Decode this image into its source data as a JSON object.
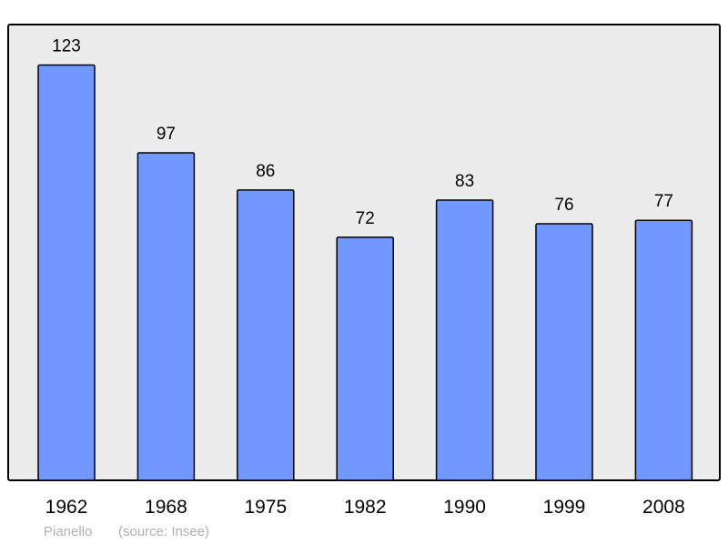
{
  "chart_data": {
    "type": "bar",
    "categories": [
      "1962",
      "1968",
      "1975",
      "1982",
      "1990",
      "1999",
      "2008"
    ],
    "values": [
      123,
      97,
      86,
      72,
      83,
      76,
      77
    ],
    "data_labels": [
      "123",
      "97",
      "86",
      "72",
      "83",
      "76",
      "77"
    ],
    "title": "",
    "xlabel": "",
    "ylabel": "",
    "ylim": [
      0,
      135
    ],
    "grid": false,
    "legend": "none",
    "bar_color": "#7098ff",
    "plot_background": "#ececec",
    "footer": {
      "place": "Pianello",
      "source": "(source: Insee)"
    }
  }
}
